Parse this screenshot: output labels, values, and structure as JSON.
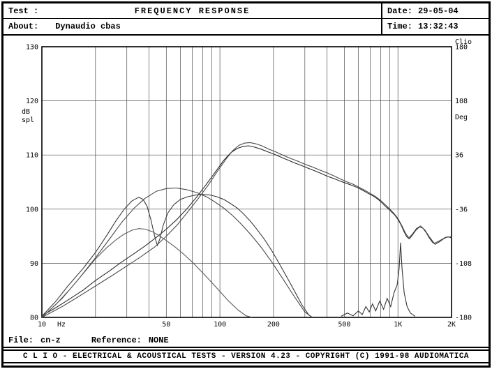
{
  "header": {
    "test_label": "Test :",
    "title": "FREQUENCY RESPONSE",
    "date_label": "Date:",
    "date_value": "29-05-04",
    "about_label": "About:",
    "about_value": "Dynaudio cbas",
    "time_label": "Time:",
    "time_value": "13:32:43"
  },
  "footer": {
    "file_label": "File:",
    "file_value": "cn-z",
    "reference_label": "Reference:",
    "reference_value": "NONE",
    "status_text": "C L I O  -  ELECTRICAL & ACOUSTICAL TESTS  -  VERSION 4.23  -  COPYRIGHT (C) 1991-98 AUDIOMATICA"
  },
  "chart_data": {
    "type": "line",
    "title": "FREQUENCY RESPONSE",
    "x_scale": "log",
    "xlim": [
      10,
      2000
    ],
    "x_unit": "Hz",
    "ylabel_left": [
      "dB",
      "spl"
    ],
    "ylabel_right": "Deg",
    "brand_label": "Clio",
    "ylim_left": [
      80,
      130
    ],
    "ylim_right": [
      -180,
      180
    ],
    "y_ticks_left": [
      130,
      120,
      110,
      100,
      90,
      80
    ],
    "y_ticks_right": [
      180,
      108,
      36,
      -36,
      -108,
      -180
    ],
    "x_ticks": [
      {
        "f": 10,
        "label": "10"
      },
      {
        "f": 50,
        "label": "50"
      },
      {
        "f": 100,
        "label": "100"
      },
      {
        "f": 200,
        "label": "200"
      },
      {
        "f": 500,
        "label": "500"
      },
      {
        "f": 1000,
        "label": "1K"
      },
      {
        "f": 2000,
        "label": "2K"
      }
    ],
    "grid": true,
    "grid_freqs": [
      10,
      20,
      30,
      40,
      50,
      60,
      70,
      80,
      90,
      100,
      200,
      300,
      400,
      500,
      600,
      700,
      800,
      900,
      1000,
      2000
    ],
    "series": [
      {
        "name": "sum-response-a",
        "color": "#2b2b2b",
        "points": [
          [
            10,
            80.3
          ],
          [
            12,
            81.8
          ],
          [
            14,
            83.2
          ],
          [
            17,
            85.0
          ],
          [
            20,
            86.8
          ],
          [
            24,
            88.6
          ],
          [
            28,
            90.2
          ],
          [
            33,
            91.8
          ],
          [
            38,
            93.2
          ],
          [
            44,
            94.8
          ],
          [
            50,
            96.3
          ],
          [
            57,
            98.0
          ],
          [
            65,
            100.0
          ],
          [
            74,
            102.2
          ],
          [
            84,
            104.6
          ],
          [
            95,
            107.0
          ],
          [
            105,
            109.0
          ],
          [
            115,
            110.4
          ],
          [
            125,
            111.2
          ],
          [
            135,
            111.6
          ],
          [
            145,
            111.7
          ],
          [
            155,
            111.5
          ],
          [
            170,
            111.1
          ],
          [
            185,
            110.6
          ],
          [
            200,
            110.2
          ],
          [
            220,
            109.6
          ],
          [
            240,
            109.1
          ],
          [
            260,
            108.6
          ],
          [
            285,
            108.1
          ],
          [
            310,
            107.6
          ],
          [
            340,
            107.1
          ],
          [
            370,
            106.6
          ],
          [
            400,
            106.1
          ],
          [
            440,
            105.6
          ],
          [
            480,
            105.1
          ],
          [
            520,
            104.7
          ],
          [
            560,
            104.3
          ],
          [
            600,
            103.9
          ],
          [
            640,
            103.4
          ],
          [
            680,
            102.9
          ],
          [
            720,
            102.5
          ],
          [
            760,
            102.0
          ],
          [
            800,
            101.4
          ],
          [
            840,
            100.7
          ],
          [
            880,
            100.1
          ],
          [
            920,
            99.5
          ],
          [
            960,
            98.9
          ],
          [
            1000,
            98.1
          ],
          [
            1040,
            97.1
          ],
          [
            1080,
            95.9
          ],
          [
            1120,
            94.9
          ],
          [
            1160,
            94.5
          ],
          [
            1200,
            95.1
          ],
          [
            1260,
            96.1
          ],
          [
            1320,
            96.7
          ],
          [
            1380,
            96.5
          ],
          [
            1440,
            95.7
          ],
          [
            1500,
            94.7
          ],
          [
            1560,
            93.9
          ],
          [
            1620,
            93.5
          ],
          [
            1700,
            93.9
          ],
          [
            1800,
            94.5
          ],
          [
            1900,
            94.9
          ],
          [
            2000,
            94.7
          ]
        ]
      },
      {
        "name": "sum-response-b",
        "color": "#4a4a4a",
        "points": [
          [
            10,
            80.0
          ],
          [
            13,
            82.0
          ],
          [
            16,
            83.8
          ],
          [
            20,
            85.8
          ],
          [
            25,
            87.8
          ],
          [
            30,
            89.5
          ],
          [
            36,
            91.2
          ],
          [
            43,
            93.0
          ],
          [
            50,
            95.0
          ],
          [
            58,
            97.2
          ],
          [
            66,
            99.5
          ],
          [
            75,
            101.8
          ],
          [
            85,
            104.2
          ],
          [
            96,
            106.8
          ],
          [
            108,
            109.2
          ],
          [
            118,
            110.8
          ],
          [
            128,
            111.8
          ],
          [
            138,
            112.2
          ],
          [
            148,
            112.3
          ],
          [
            158,
            112.1
          ],
          [
            172,
            111.7
          ],
          [
            188,
            111.1
          ],
          [
            205,
            110.6
          ],
          [
            225,
            110.0
          ],
          [
            248,
            109.4
          ],
          [
            272,
            108.9
          ],
          [
            300,
            108.3
          ],
          [
            330,
            107.8
          ],
          [
            365,
            107.2
          ],
          [
            400,
            106.7
          ],
          [
            440,
            106.1
          ],
          [
            480,
            105.5
          ],
          [
            520,
            105.0
          ],
          [
            560,
            104.6
          ],
          [
            600,
            104.1
          ],
          [
            650,
            103.5
          ],
          [
            700,
            102.9
          ],
          [
            750,
            102.3
          ],
          [
            800,
            101.6
          ],
          [
            850,
            100.8
          ],
          [
            900,
            100.0
          ],
          [
            950,
            99.2
          ],
          [
            1000,
            98.3
          ],
          [
            1050,
            97.0
          ],
          [
            1100,
            95.6
          ],
          [
            1150,
            94.7
          ],
          [
            1200,
            95.3
          ],
          [
            1270,
            96.4
          ],
          [
            1340,
            96.9
          ],
          [
            1420,
            96.1
          ],
          [
            1500,
            94.9
          ],
          [
            1600,
            93.7
          ],
          [
            1700,
            94.1
          ],
          [
            1850,
            94.8
          ],
          [
            2000,
            94.9
          ]
        ]
      },
      {
        "name": "woofer-notch",
        "color": "#3a3a3a",
        "points": [
          [
            10,
            80.2
          ],
          [
            12,
            83.0
          ],
          [
            14,
            85.8
          ],
          [
            17,
            89.0
          ],
          [
            20,
            92.0
          ],
          [
            23,
            95.0
          ],
          [
            26,
            97.8
          ],
          [
            29,
            100.0
          ],
          [
            32,
            101.5
          ],
          [
            35,
            102.2
          ],
          [
            37,
            101.8
          ],
          [
            39,
            100.5
          ],
          [
            41,
            98.0
          ],
          [
            43,
            95.0
          ],
          [
            44.5,
            93.3
          ],
          [
            46,
            94.5
          ],
          [
            48,
            97.0
          ],
          [
            51,
            99.3
          ],
          [
            55,
            100.8
          ],
          [
            60,
            101.8
          ],
          [
            66,
            102.3
          ],
          [
            73,
            102.6
          ],
          [
            80,
            102.7
          ],
          [
            88,
            102.6
          ],
          [
            96,
            102.3
          ],
          [
            105,
            101.8
          ],
          [
            115,
            101.0
          ],
          [
            125,
            100.2
          ],
          [
            135,
            99.2
          ],
          [
            148,
            97.8
          ],
          [
            162,
            96.2
          ],
          [
            178,
            94.4
          ],
          [
            195,
            92.4
          ],
          [
            215,
            90.0
          ],
          [
            240,
            87.2
          ],
          [
            265,
            84.6
          ],
          [
            290,
            82.2
          ],
          [
            315,
            80.5
          ],
          [
            330,
            80.0
          ]
        ]
      },
      {
        "name": "smooth-hump",
        "color": "#474747",
        "points": [
          [
            10,
            80.0
          ],
          [
            13,
            83.5
          ],
          [
            16,
            87.0
          ],
          [
            20,
            91.0
          ],
          [
            24,
            94.5
          ],
          [
            28,
            97.5
          ],
          [
            33,
            100.2
          ],
          [
            38,
            102.0
          ],
          [
            44,
            103.3
          ],
          [
            50,
            103.8
          ],
          [
            57,
            103.9
          ],
          [
            65,
            103.6
          ],
          [
            75,
            103.0
          ],
          [
            85,
            102.2
          ],
          [
            95,
            101.2
          ],
          [
            105,
            100.2
          ],
          [
            118,
            98.8
          ],
          [
            132,
            97.2
          ],
          [
            150,
            95.2
          ],
          [
            170,
            93.0
          ],
          [
            195,
            90.3
          ],
          [
            225,
            87.2
          ],
          [
            260,
            84.0
          ],
          [
            300,
            81.0
          ],
          [
            330,
            80.0
          ]
        ]
      },
      {
        "name": "port-hump",
        "color": "#5a5a5a",
        "points": [
          [
            10,
            80.0
          ],
          [
            12,
            82.4
          ],
          [
            14,
            84.8
          ],
          [
            16,
            87.0
          ],
          [
            18,
            89.0
          ],
          [
            20,
            90.8
          ],
          [
            23,
            92.8
          ],
          [
            26,
            94.3
          ],
          [
            29,
            95.4
          ],
          [
            32,
            96.1
          ],
          [
            35,
            96.4
          ],
          [
            38,
            96.3
          ],
          [
            42,
            95.8
          ],
          [
            46,
            95.0
          ],
          [
            50,
            94.2
          ],
          [
            56,
            93.0
          ],
          [
            62,
            91.8
          ],
          [
            70,
            90.2
          ],
          [
            78,
            88.6
          ],
          [
            88,
            86.8
          ],
          [
            100,
            84.8
          ],
          [
            112,
            83.0
          ],
          [
            126,
            81.4
          ],
          [
            140,
            80.3
          ],
          [
            152,
            80.0
          ]
        ]
      },
      {
        "name": "spike-1k",
        "color": "#333333",
        "points": [
          [
            480,
            80.2
          ],
          [
            520,
            80.8
          ],
          [
            560,
            80.3
          ],
          [
            600,
            81.2
          ],
          [
            630,
            80.5
          ],
          [
            660,
            82.0
          ],
          [
            690,
            81.0
          ],
          [
            720,
            82.5
          ],
          [
            750,
            81.2
          ],
          [
            790,
            83.0
          ],
          [
            830,
            81.5
          ],
          [
            870,
            83.5
          ],
          [
            910,
            82.0
          ],
          [
            950,
            84.5
          ],
          [
            990,
            86.0
          ],
          [
            1015,
            89.0
          ],
          [
            1035,
            93.8
          ],
          [
            1055,
            89.0
          ],
          [
            1085,
            84.5
          ],
          [
            1125,
            82.0
          ],
          [
            1175,
            80.8
          ],
          [
            1250,
            80.2
          ]
        ]
      }
    ]
  },
  "colors": {
    "frame": "#000000",
    "grid": "#4d4d4d",
    "background": "#ffffff"
  }
}
